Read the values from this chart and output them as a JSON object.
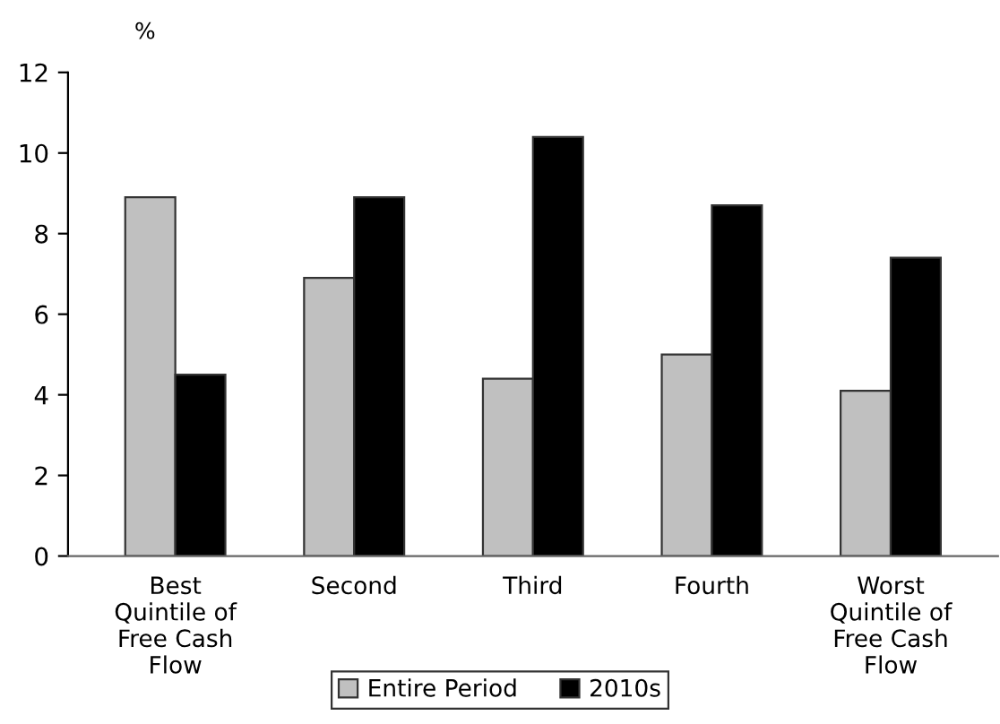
{
  "chart_data": {
    "type": "bar",
    "ylabel": "%",
    "categories": [
      "Best\nQuintile of\nFree Cash\nFlow",
      "Second",
      "Third",
      "Fourth",
      "Worst\nQuintile of\nFree Cash\nFlow"
    ],
    "series": [
      {
        "name": "Entire Period",
        "color": "#c0c0c0",
        "values": [
          8.9,
          6.9,
          4.4,
          5.0,
          4.1
        ]
      },
      {
        "name": "2010s",
        "color": "#000000",
        "values": [
          4.5,
          8.9,
          10.4,
          8.7,
          7.4
        ]
      }
    ],
    "ylim": [
      0,
      12
    ],
    "yticks": [
      0,
      2,
      4,
      6,
      8,
      10,
      12
    ],
    "grid": false,
    "legend": "bottom"
  }
}
